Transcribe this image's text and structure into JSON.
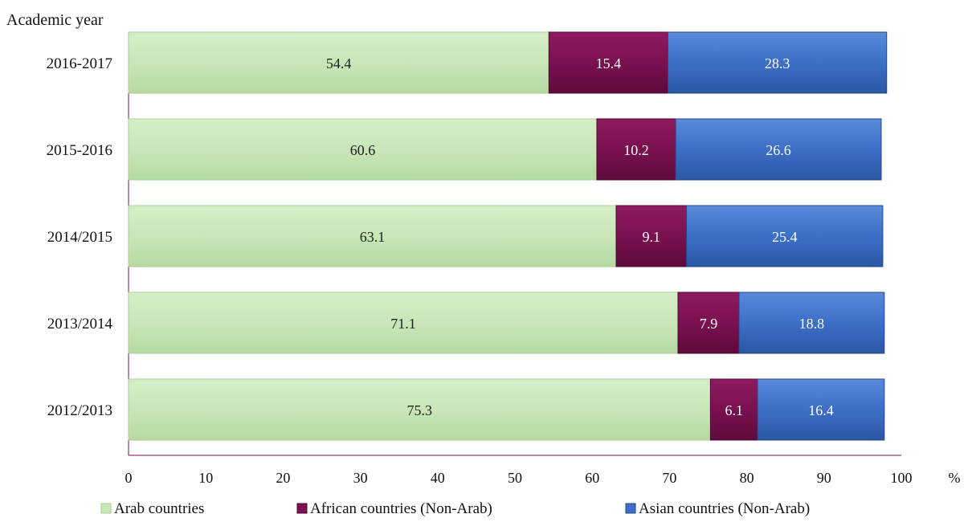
{
  "chart_data": {
    "type": "bar",
    "orientation": "horizontal",
    "stacked": true,
    "ylabel": "Academic year",
    "xlabel": "%",
    "xlim": [
      0,
      100
    ],
    "xticks": [
      0,
      10,
      20,
      30,
      40,
      50,
      60,
      70,
      80,
      90,
      100
    ],
    "grid": false,
    "legend_position": "bottom",
    "categories": [
      "2016-2017",
      "2015-2016",
      "2014/2015",
      "2013/2014",
      "2012/2013"
    ],
    "series": [
      {
        "name": "Arab countries",
        "values": [
          54.4,
          60.6,
          63.1,
          71.1,
          75.3
        ],
        "color": "#c9e6b8",
        "label_color": "#222222"
      },
      {
        "name": "African countries (Non-Arab)",
        "values": [
          15.4,
          10.2,
          9.1,
          7.9,
          6.1
        ],
        "color": "#7a1150",
        "label_color": "#ffffff"
      },
      {
        "name": "Asian countries (Non-Arab)",
        "values": [
          28.3,
          26.6,
          25.4,
          18.8,
          16.4
        ],
        "color": "#3d6fc8",
        "label_color": "#ffffff"
      }
    ]
  }
}
